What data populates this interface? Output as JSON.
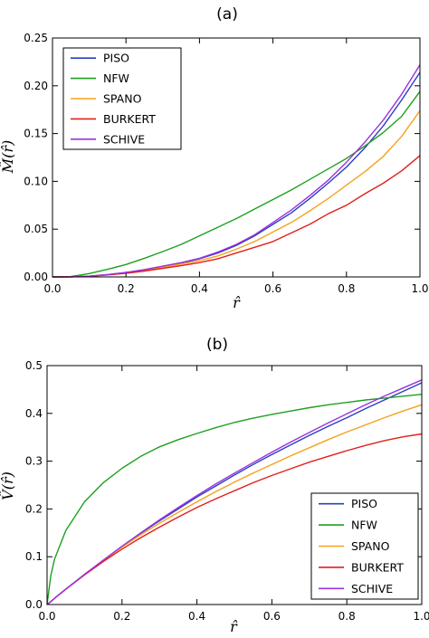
{
  "chart_data": [
    {
      "type": "line",
      "title": "(a)",
      "xlabel": "r̂",
      "ylabel": "M̂(r̂)",
      "xlim": [
        0.0,
        1.0
      ],
      "ylim": [
        0.0,
        0.25
      ],
      "xticks": [
        "0.0",
        "0.2",
        "0.4",
        "0.6",
        "0.8",
        "1.0"
      ],
      "yticks": [
        "0.00",
        "0.05",
        "0.10",
        "0.15",
        "0.20",
        "0.25"
      ],
      "legend_position": "top-left",
      "grid": false,
      "x": [
        0,
        0.05,
        0.1,
        0.15,
        0.2,
        0.25,
        0.3,
        0.35,
        0.4,
        0.45,
        0.5,
        0.55,
        0.6,
        0.65,
        0.7,
        0.75,
        0.8,
        0.85,
        0.9,
        0.95,
        1.0
      ],
      "series": [
        {
          "name": "PISO",
          "color": "#2b3fbf",
          "values": [
            0,
            0.0001,
            0.0008,
            0.0025,
            0.0045,
            0.0075,
            0.011,
            0.0145,
            0.019,
            0.025,
            0.033,
            0.043,
            0.055,
            0.067,
            0.082,
            0.098,
            0.115,
            0.135,
            0.158,
            0.185,
            0.214
          ]
        },
        {
          "name": "NFW",
          "color": "#1ea01e",
          "values": [
            0,
            0.0004,
            0.0035,
            0.008,
            0.013,
            0.0195,
            0.0265,
            0.034,
            0.043,
            0.052,
            0.061,
            0.071,
            0.081,
            0.091,
            0.102,
            0.113,
            0.124,
            0.137,
            0.151,
            0.168,
            0.194
          ]
        },
        {
          "name": "SPANO",
          "color": "#f5a21b",
          "values": [
            0,
            0.0001,
            0.0008,
            0.0024,
            0.0043,
            0.007,
            0.0102,
            0.0135,
            0.017,
            0.022,
            0.029,
            0.037,
            0.047,
            0.057,
            0.069,
            0.082,
            0.096,
            0.11,
            0.126,
            0.147,
            0.174
          ]
        },
        {
          "name": "BURKERT",
          "color": "#e0201b",
          "values": [
            0,
            0.0001,
            0.0007,
            0.0021,
            0.0038,
            0.0062,
            0.009,
            0.0118,
            0.015,
            0.019,
            0.025,
            0.031,
            0.037,
            0.046,
            0.055,
            0.066,
            0.075,
            0.087,
            0.098,
            0.111,
            0.127
          ]
        },
        {
          "name": "SCHIVE",
          "color": "#9a32e0",
          "values": [
            0,
            0.0001,
            0.0008,
            0.0025,
            0.0046,
            0.0077,
            0.0113,
            0.015,
            0.0195,
            0.026,
            0.034,
            0.044,
            0.057,
            0.07,
            0.085,
            0.101,
            0.12,
            0.141,
            0.164,
            0.191,
            0.222
          ]
        }
      ]
    },
    {
      "type": "line",
      "title": "(b)",
      "xlabel": "r̂",
      "ylabel": "V̂(r̂)",
      "xlim": [
        0.0,
        1.0
      ],
      "ylim": [
        0.0,
        0.5
      ],
      "xticks": [
        "0.0",
        "0.2",
        "0.4",
        "0.6",
        "0.8",
        "1.0"
      ],
      "yticks": [
        "0.0",
        "0.1",
        "0.2",
        "0.3",
        "0.4",
        "0.5"
      ],
      "legend_position": "bottom-right",
      "grid": false,
      "x": [
        0,
        0.01,
        0.02,
        0.05,
        0.1,
        0.15,
        0.2,
        0.25,
        0.3,
        0.35,
        0.4,
        0.45,
        0.5,
        0.55,
        0.6,
        0.65,
        0.7,
        0.75,
        0.8,
        0.85,
        0.9,
        0.95,
        1.0
      ],
      "series": [
        {
          "name": "PISO",
          "color": "#2b3fbf",
          "values": [
            0,
            0.006,
            0.013,
            0.032,
            0.063,
            0.092,
            0.121,
            0.149,
            0.175,
            0.2,
            0.225,
            0.248,
            0.271,
            0.293,
            0.314,
            0.334,
            0.354,
            0.373,
            0.391,
            0.41,
            0.428,
            0.446,
            0.464
          ]
        },
        {
          "name": "NFW",
          "color": "#1ea01e",
          "values": [
            0,
            0.06,
            0.095,
            0.155,
            0.215,
            0.255,
            0.285,
            0.31,
            0.33,
            0.345,
            0.358,
            0.37,
            0.381,
            0.39,
            0.398,
            0.405,
            0.412,
            0.418,
            0.423,
            0.428,
            0.432,
            0.436,
            0.44
          ]
        },
        {
          "name": "SPANO",
          "color": "#f5a21b",
          "values": [
            0,
            0.006,
            0.013,
            0.032,
            0.063,
            0.092,
            0.12,
            0.146,
            0.17,
            0.193,
            0.215,
            0.236,
            0.256,
            0.275,
            0.293,
            0.311,
            0.328,
            0.345,
            0.361,
            0.376,
            0.391,
            0.405,
            0.418
          ]
        },
        {
          "name": "BURKERT",
          "color": "#e0201b",
          "values": [
            0,
            0.006,
            0.013,
            0.032,
            0.062,
            0.09,
            0.116,
            0.14,
            0.162,
            0.183,
            0.203,
            0.221,
            0.238,
            0.255,
            0.27,
            0.284,
            0.298,
            0.31,
            0.322,
            0.333,
            0.343,
            0.351,
            0.357
          ]
        },
        {
          "name": "SCHIVE",
          "color": "#9a32e0",
          "values": [
            0,
            0.006,
            0.013,
            0.032,
            0.063,
            0.093,
            0.122,
            0.15,
            0.177,
            0.203,
            0.228,
            0.252,
            0.275,
            0.297,
            0.319,
            0.34,
            0.36,
            0.38,
            0.399,
            0.418,
            0.436,
            0.453,
            0.47
          ]
        }
      ]
    }
  ]
}
